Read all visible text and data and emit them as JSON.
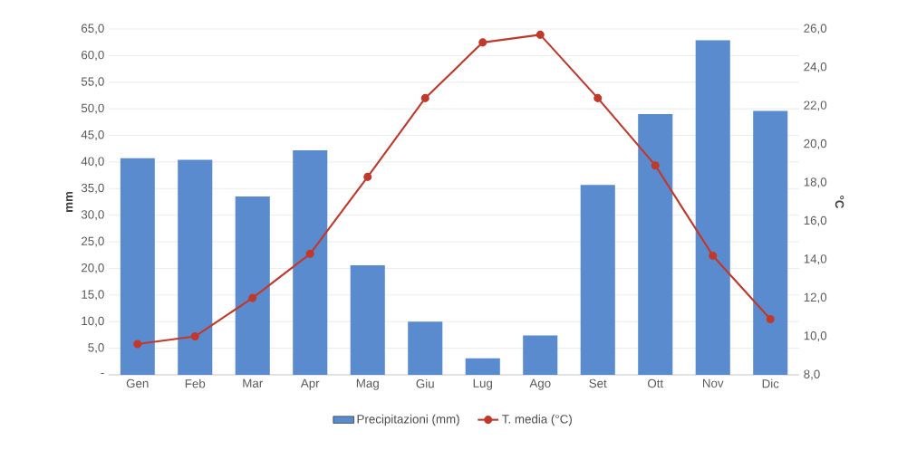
{
  "chart_data": {
    "type": "bar",
    "ylabel": "mm",
    "y2label": "°C",
    "categories": [
      "Gen",
      "Feb",
      "Mar",
      "Apr",
      "Mag",
      "Giu",
      "Lug",
      "Ago",
      "Set",
      "Ott",
      "Nov",
      "Dic"
    ],
    "series": [
      {
        "name": "Precipitazioni (mm)",
        "color": "#5b8bcf",
        "values": [
          40.7,
          40.4,
          33.5,
          42.2,
          20.6,
          10.0,
          3.1,
          7.4,
          35.7,
          49.0,
          62.9,
          49.6
        ]
      },
      {
        "name": "T. media (°C)",
        "type": "line",
        "axis": "y2",
        "color": "#c0392b",
        "values": [
          9.6,
          10.0,
          12.0,
          14.3,
          18.3,
          22.4,
          25.3,
          25.7,
          22.4,
          18.9,
          14.2,
          10.9
        ]
      }
    ],
    "ylim": [
      0,
      65
    ],
    "yticks": [
      {
        "value": 0,
        "label": "-"
      },
      {
        "value": 5,
        "label": "5,0"
      },
      {
        "value": 10,
        "label": "10,0"
      },
      {
        "value": 15,
        "label": "15,0"
      },
      {
        "value": 20,
        "label": "20,0"
      },
      {
        "value": 25,
        "label": "25,0"
      },
      {
        "value": 30,
        "label": "30,0"
      },
      {
        "value": 35,
        "label": "35,0"
      },
      {
        "value": 40,
        "label": "40,0"
      },
      {
        "value": 45,
        "label": "45,0"
      },
      {
        "value": 50,
        "label": "50,0"
      },
      {
        "value": 55,
        "label": "55,0"
      },
      {
        "value": 60,
        "label": "60,0"
      },
      {
        "value": 65,
        "label": "65,0"
      }
    ],
    "y2lim": [
      8,
      26
    ],
    "y2ticks": [
      {
        "value": 8,
        "label": "8,0"
      },
      {
        "value": 10,
        "label": "10,0"
      },
      {
        "value": 12,
        "label": "12,0"
      },
      {
        "value": 14,
        "label": "14,0"
      },
      {
        "value": 16,
        "label": "16,0"
      },
      {
        "value": 18,
        "label": "18,0"
      },
      {
        "value": 20,
        "label": "20,0"
      },
      {
        "value": 22,
        "label": "22,0"
      },
      {
        "value": 24,
        "label": "24,0"
      },
      {
        "value": 26,
        "label": "26,0"
      }
    ],
    "grid": "y",
    "legend": "bottom",
    "marker": "circle"
  }
}
